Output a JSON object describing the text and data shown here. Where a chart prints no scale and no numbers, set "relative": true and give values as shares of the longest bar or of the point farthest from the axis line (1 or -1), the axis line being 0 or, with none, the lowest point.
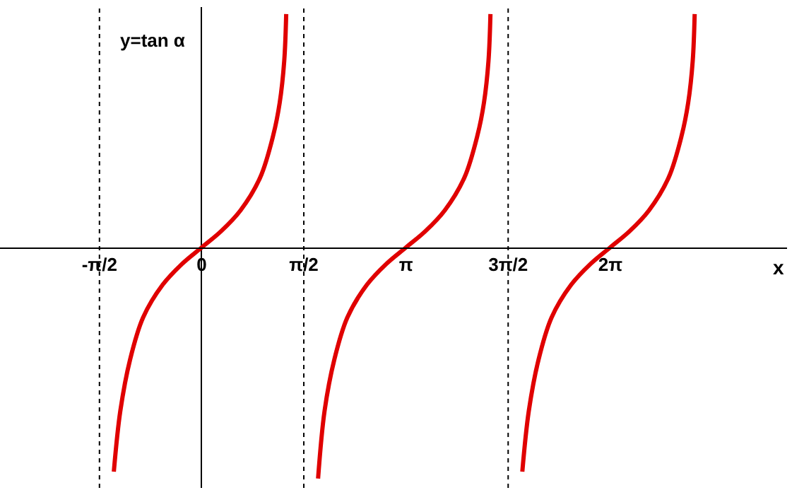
{
  "chart_data": {
    "type": "line",
    "relative": true,
    "ylabel": "y=tan α",
    "xlabel": "x",
    "x": [
      -1.35,
      -1.25,
      -1.1,
      -0.9,
      -0.6,
      -0.3,
      0,
      0.3,
      0.6,
      0.9,
      1.1,
      1.2,
      1.27,
      1.3,
      1.5,
      1.79,
      1.89,
      2.04,
      2.24,
      2.54,
      2.84,
      3.14,
      3.44,
      3.74,
      4.04,
      4.24,
      4.34,
      4.41,
      4.44,
      4.7,
      4.93,
      5.03,
      5.18,
      5.38,
      5.68,
      5.98,
      6.28,
      6.58,
      6.88,
      7.18,
      7.38,
      7.48,
      7.55,
      7.58
    ],
    "series": [
      {
        "color": "#e00000",
        "values": [
          -0.96,
          -0.7,
          -0.48,
          -0.3,
          -0.16,
          -0.07,
          0,
          0.07,
          0.16,
          0.3,
          0.48,
          0.62,
          0.8,
          1,
          null,
          -0.99,
          -0.7,
          -0.48,
          -0.3,
          -0.16,
          -0.07,
          0,
          0.07,
          0.16,
          0.3,
          0.48,
          0.62,
          0.8,
          1,
          null,
          -0.96,
          -0.7,
          -0.48,
          -0.3,
          -0.16,
          -0.07,
          0,
          0.07,
          0.16,
          0.3,
          0.48,
          0.62,
          0.8,
          1
        ]
      }
    ],
    "xlim": [
      -3.1,
      9.0
    ],
    "xticks": [
      {
        "value": -1.5708,
        "label": "-π/2"
      },
      0,
      {
        "value": 1.5708,
        "label": "π/2"
      },
      {
        "value": 3.1416,
        "label": "π"
      },
      {
        "value": 4.7124,
        "label": "3π/2"
      },
      {
        "value": 6.2832,
        "label": "2π"
      }
    ],
    "ref_lines": [
      {
        "axis": "x",
        "value": -1.5708,
        "color": "#000000",
        "line_style": "dotted"
      },
      {
        "axis": "x",
        "value": 1.5708,
        "color": "#000000",
        "line_style": "dotted"
      },
      {
        "axis": "x",
        "value": 4.7124,
        "color": "#000000",
        "line_style": "dotted"
      }
    ],
    "grid": false,
    "marker": "none",
    "line_style": "solid"
  }
}
